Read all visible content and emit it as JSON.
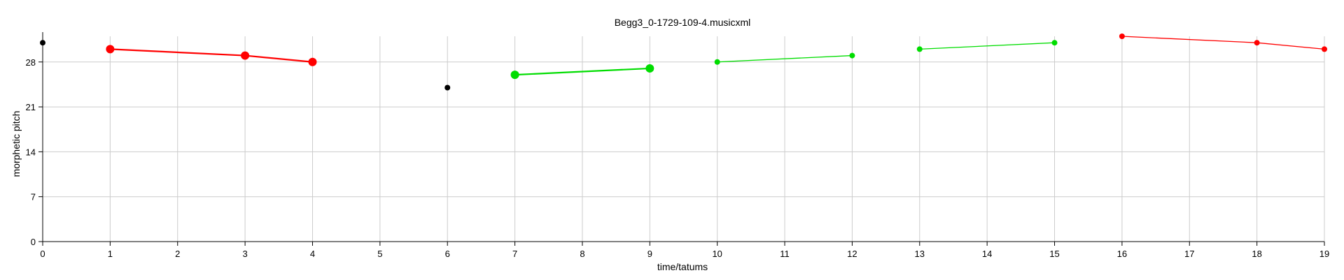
{
  "chart_data": {
    "type": "line",
    "title": "Begg3_0-1729-109-4.musicxml",
    "xlabel": "time/tatums",
    "ylabel": "morphetic pitch",
    "xlim": [
      0,
      19
    ],
    "ylim": [
      0,
      32
    ],
    "xticks": [
      "0",
      "1",
      "2",
      "3",
      "4",
      "5",
      "6",
      "7",
      "8",
      "9",
      "10",
      "11",
      "12",
      "13",
      "14",
      "15",
      "16",
      "17",
      "18",
      "19"
    ],
    "yticks": [
      "0",
      "7",
      "14",
      "21",
      "28"
    ],
    "grid": true,
    "series": [
      {
        "color": "#000000",
        "size": "small",
        "points": [
          [
            0,
            31
          ]
        ]
      },
      {
        "color": "#ff0000",
        "size": "large",
        "points": [
          [
            1,
            30
          ],
          [
            3,
            29
          ],
          [
            4,
            28
          ]
        ]
      },
      {
        "color": "#000000",
        "size": "small",
        "points": [
          [
            6,
            24
          ]
        ]
      },
      {
        "color": "#00dd00",
        "size": "large",
        "points": [
          [
            7,
            26
          ],
          [
            9,
            27
          ]
        ]
      },
      {
        "color": "#00dd00",
        "size": "small",
        "points": [
          [
            10,
            28
          ],
          [
            12,
            29
          ]
        ]
      },
      {
        "color": "#00dd00",
        "size": "small",
        "points": [
          [
            13,
            30
          ],
          [
            15,
            31
          ]
        ]
      },
      {
        "color": "#ff0000",
        "size": "small",
        "points": [
          [
            16,
            32
          ],
          [
            18,
            31
          ],
          [
            19,
            30
          ]
        ]
      }
    ]
  }
}
